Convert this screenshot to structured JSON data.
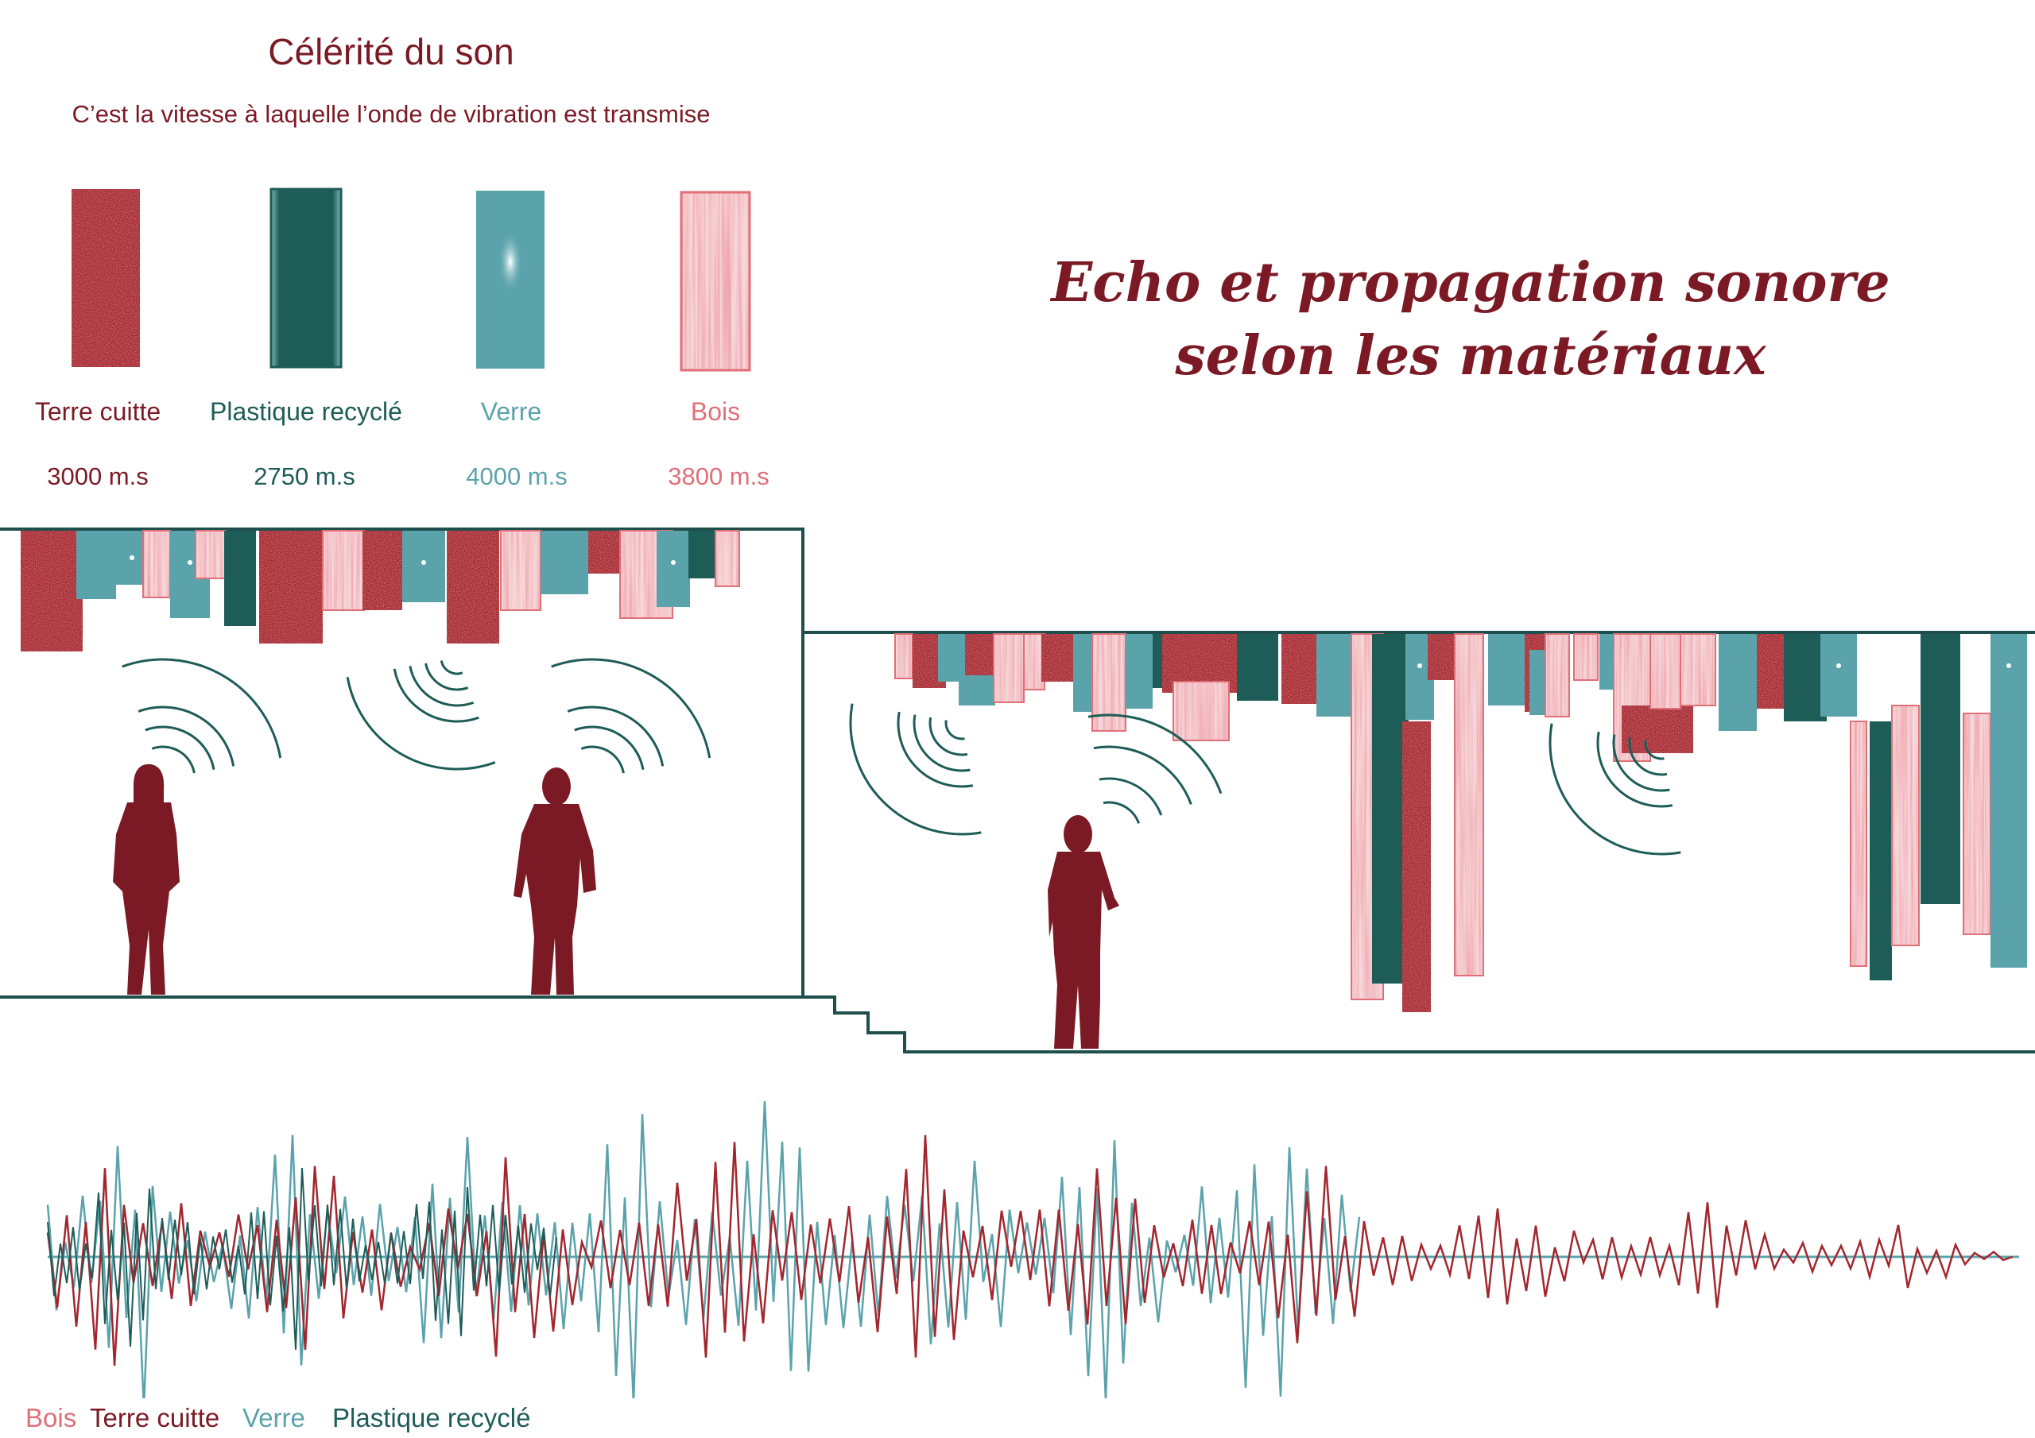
{
  "celerite": {
    "title": "Célérité du son",
    "subtitle": "C’est la vitesse à laquelle l’onde de vibration est transmise"
  },
  "main_title": {
    "line1": "Echo et propagation sonore",
    "line2": "selon les matériaux"
  },
  "materials": [
    {
      "label": "Terre cuitte",
      "speed": "3000 m.s",
      "color": "#a3262e",
      "text_color": "#7b1a25"
    },
    {
      "label": "Plastique  recyclé",
      "speed": "2750 m.s",
      "color": "#1e5c58",
      "text_color": "#1e5c58"
    },
    {
      "label": "Verre",
      "speed": "4000 m.s",
      "color": "#5ba3ab",
      "text_color": "#5ba3ab"
    },
    {
      "label": "Bois",
      "speed": "3800 m.s",
      "color": "#e88a92",
      "text_color": "#e06f78"
    }
  ],
  "legend": [
    "Bois",
    "Terre cuitte",
    "Verre",
    "Plastique  recyclé"
  ],
  "colors": {
    "terre": "#a3262e",
    "plastique": "#1e5c58",
    "verre": "#5ba3ab",
    "bois": "#eaa0a6",
    "silhouette": "#7b1a25",
    "line": "#1e4f4c",
    "accent": "#7b1a25"
  }
}
